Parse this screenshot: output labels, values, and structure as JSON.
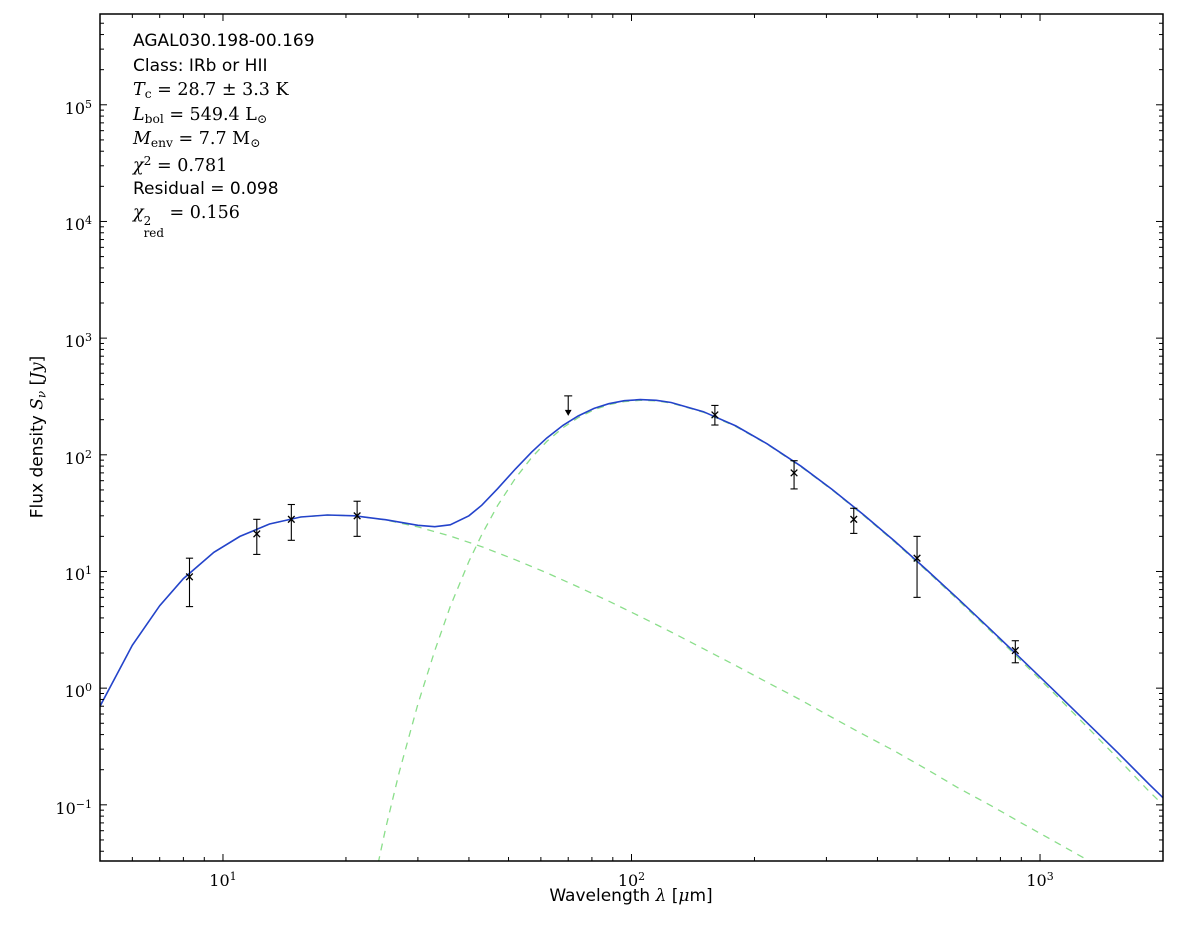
{
  "chart_data": {
    "type": "line",
    "title": "",
    "source_label": "AGAL030.198-00.169",
    "annotation": {
      "lines": [
        {
          "font": "sans",
          "segments": [
            {
              "text": "AGAL030.198-00.169"
            }
          ]
        },
        {
          "font": "sans",
          "segments": [
            {
              "text": "Class: IRb or HII"
            }
          ]
        },
        {
          "font": "serif",
          "segments": [
            {
              "text": "T",
              "style": "italic"
            },
            {
              "text": "c",
              "script": "sub"
            },
            {
              "text": " = 28.7 ± 3.3 K"
            }
          ]
        },
        {
          "font": "serif",
          "segments": [
            {
              "text": "L",
              "style": "italic"
            },
            {
              "text": "bol",
              "script": "sub"
            },
            {
              "text": " = 549.4 L"
            },
            {
              "text": "⊙",
              "script": "sub"
            }
          ]
        },
        {
          "font": "serif",
          "segments": [
            {
              "text": "M",
              "style": "italic"
            },
            {
              "text": "env",
              "script": "sub"
            },
            {
              "text": " = 7.7 M"
            },
            {
              "text": "⊙",
              "script": "sub"
            }
          ]
        },
        {
          "font": "serif",
          "segments": [
            {
              "text": "χ",
              "style": "italic"
            },
            {
              "text": "2",
              "script": "sup"
            },
            {
              "text": " = 0.781"
            }
          ]
        },
        {
          "font": "sans",
          "segments": [
            {
              "text": "Residual = 0.098"
            }
          ]
        },
        {
          "font": "serif",
          "segments": [
            {
              "text": "χ",
              "style": "italic"
            },
            {
              "sup": "2",
              "sub": "red"
            },
            {
              "text": " = 0.156"
            }
          ]
        }
      ]
    },
    "x_axis": {
      "scale": "log",
      "min": 5,
      "max": 2000,
      "tick_exponents": [
        1,
        2,
        3
      ],
      "label_segments": [
        {
          "text": "Wavelength "
        },
        {
          "text": "λ",
          "style": "italic",
          "font": "serif"
        },
        {
          "text": " ["
        },
        {
          "text": "μ",
          "style": "italic",
          "font": "serif"
        },
        {
          "text": "m]"
        }
      ]
    },
    "y_axis": {
      "scale": "log",
      "min": 0.033,
      "max": 600000,
      "tick_exponents": [
        5,
        4,
        3,
        2,
        1,
        0,
        -1
      ],
      "label_segments": [
        {
          "text": "Flux density "
        },
        {
          "text": "S",
          "style": "italic",
          "font": "serif"
        },
        {
          "text": "ν",
          "style": "italic",
          "font": "serif",
          "script": "sub"
        },
        {
          "text": " ["
        },
        {
          "text": "Jy",
          "style": "italic",
          "font": "serif"
        },
        {
          "text": "]"
        }
      ]
    },
    "colors": {
      "model_total": "#2443cb",
      "model_components": "#8ade8a",
      "data": "#000000",
      "frame": "#000000"
    },
    "series": [
      {
        "name": "hot-component-fit",
        "style": "dashed",
        "color_key": "model_components",
        "width": 1.3,
        "points": [
          [
            5,
            0.7
          ],
          [
            6,
            2.33
          ],
          [
            7,
            5.09
          ],
          [
            8,
            8.69
          ],
          [
            9.5,
            14.6
          ],
          [
            11,
            20.0
          ],
          [
            13,
            25.5
          ],
          [
            15.5,
            29.3
          ],
          [
            18,
            30.5
          ],
          [
            21,
            30.0
          ],
          [
            25,
            27.7
          ],
          [
            30,
            24.1
          ],
          [
            36,
            20.1
          ],
          [
            43,
            16.3
          ],
          [
            52,
            12.6
          ],
          [
            62,
            9.74
          ],
          [
            74,
            7.38
          ],
          [
            88,
            5.56
          ],
          [
            105,
            4.11
          ],
          [
            125,
            3.03
          ],
          [
            150,
            2.18
          ],
          [
            180,
            1.56
          ],
          [
            215,
            1.12
          ],
          [
            260,
            0.79
          ],
          [
            310,
            0.56
          ],
          [
            370,
            0.4
          ],
          [
            440,
            0.29
          ],
          [
            530,
            0.2
          ],
          [
            630,
            0.14
          ],
          [
            760,
            0.098
          ],
          [
            900,
            0.07
          ],
          [
            1080,
            0.049
          ],
          [
            1300,
            0.034
          ],
          [
            1550,
            0.024
          ],
          [
            1850,
            0.017
          ],
          [
            2000,
            0.015
          ]
        ]
      },
      {
        "name": "cold-component-fit",
        "style": "dashed",
        "color_key": "model_components",
        "width": 1.3,
        "points": [
          [
            22,
            0.007
          ],
          [
            23,
            0.016
          ],
          [
            24,
            0.032
          ],
          [
            25,
            0.062
          ],
          [
            27,
            0.19
          ],
          [
            30,
            0.73
          ],
          [
            33,
            2.1
          ],
          [
            36,
            5.0
          ],
          [
            40,
            12.2
          ],
          [
            43,
            20.7
          ],
          [
            47,
            36.6
          ],
          [
            52,
            63.1
          ],
          [
            57,
            95.0
          ],
          [
            62,
            130
          ],
          [
            68,
            171
          ],
          [
            74,
            208
          ],
          [
            81,
            243
          ],
          [
            88,
            269
          ],
          [
            96,
            286
          ],
          [
            105,
            293
          ],
          [
            115,
            290
          ],
          [
            125,
            278
          ],
          [
            150,
            232
          ],
          [
            180,
            175
          ],
          [
            215,
            123
          ],
          [
            260,
            79.0
          ],
          [
            310,
            49.9
          ],
          [
            370,
            30.2
          ],
          [
            440,
            18.0
          ],
          [
            530,
            10.0
          ],
          [
            630,
            5.7
          ],
          [
            760,
            3.05
          ],
          [
            900,
            1.71
          ],
          [
            1080,
            0.91
          ],
          [
            1300,
            0.47
          ],
          [
            1550,
            0.25
          ],
          [
            1850,
            0.13
          ],
          [
            2000,
            0.1
          ]
        ]
      },
      {
        "name": "two-component-fit-total",
        "style": "solid",
        "color_key": "model_total",
        "width": 1.6,
        "points": [
          [
            5,
            0.7
          ],
          [
            6,
            2.33
          ],
          [
            7,
            5.09
          ],
          [
            8,
            8.69
          ],
          [
            9.5,
            14.6
          ],
          [
            11,
            20.0
          ],
          [
            13,
            25.5
          ],
          [
            15.5,
            29.3
          ],
          [
            18,
            30.5
          ],
          [
            21,
            30.0
          ],
          [
            25,
            27.8
          ],
          [
            30,
            24.9
          ],
          [
            33,
            24.2
          ],
          [
            36,
            25.1
          ],
          [
            40,
            30.0
          ],
          [
            43,
            37.0
          ],
          [
            47,
            51.1
          ],
          [
            52,
            75.7
          ],
          [
            57,
            106
          ],
          [
            62,
            139
          ],
          [
            68,
            179
          ],
          [
            74,
            215
          ],
          [
            81,
            250
          ],
          [
            88,
            274
          ],
          [
            96,
            291
          ],
          [
            105,
            297
          ],
          [
            115,
            293
          ],
          [
            125,
            281
          ],
          [
            150,
            234
          ],
          [
            180,
            177
          ],
          [
            215,
            124
          ],
          [
            260,
            79.8
          ],
          [
            310,
            50.4
          ],
          [
            370,
            30.6
          ],
          [
            440,
            18.3
          ],
          [
            530,
            10.2
          ],
          [
            630,
            5.84
          ],
          [
            760,
            3.14
          ],
          [
            900,
            1.78
          ],
          [
            1080,
            0.96
          ],
          [
            1300,
            0.51
          ],
          [
            1550,
            0.28
          ],
          [
            1850,
            0.15
          ],
          [
            2000,
            0.115
          ]
        ]
      }
    ],
    "data_points": [
      {
        "wavelength_um": 8.28,
        "flux_jy": 9,
        "flux_lo": 5,
        "flux_hi": 13
      },
      {
        "wavelength_um": 12.1,
        "flux_jy": 21,
        "flux_lo": 14,
        "flux_hi": 28
      },
      {
        "wavelength_um": 14.7,
        "flux_jy": 28,
        "flux_lo": 18.5,
        "flux_hi": 37.5
      },
      {
        "wavelength_um": 21.3,
        "flux_jy": 30,
        "flux_lo": 20,
        "flux_hi": 40
      },
      {
        "wavelength_um": 70,
        "flux_jy": 320,
        "upper_limit": true
      },
      {
        "wavelength_um": 160,
        "flux_jy": 220,
        "flux_lo": 180,
        "flux_hi": 265
      },
      {
        "wavelength_um": 250,
        "flux_jy": 70,
        "flux_lo": 51,
        "flux_hi": 89
      },
      {
        "wavelength_um": 350,
        "flux_jy": 28,
        "flux_lo": 21.2,
        "flux_hi": 34.8
      },
      {
        "wavelength_um": 500,
        "flux_jy": 13,
        "flux_lo": 6,
        "flux_hi": 20
      },
      {
        "wavelength_um": 870,
        "flux_jy": 2.1,
        "flux_lo": 1.65,
        "flux_hi": 2.55
      }
    ]
  }
}
